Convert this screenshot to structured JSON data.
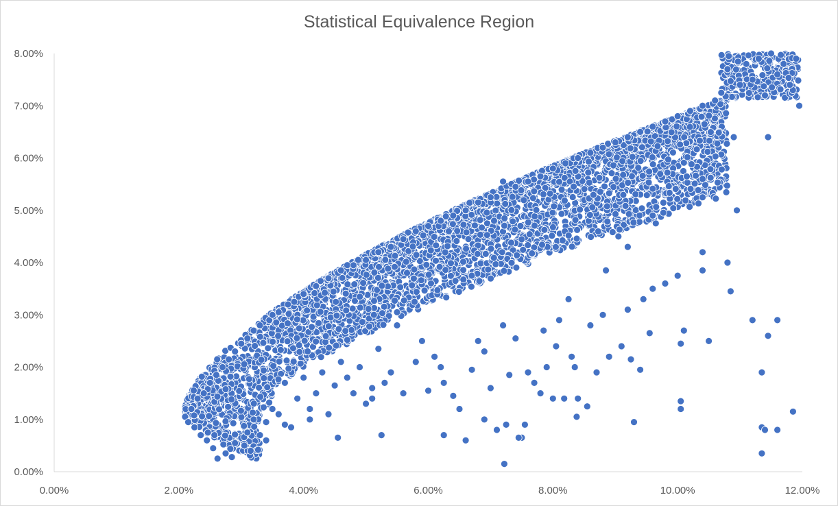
{
  "chart_data": {
    "type": "scatter",
    "title": "Statistical Equivalence Region",
    "xlabel": "",
    "ylabel": "",
    "xlim": [
      0,
      0.12
    ],
    "ylim": [
      0,
      0.08
    ],
    "x_ticks": [
      "0.00%",
      "2.00%",
      "4.00%",
      "6.00%",
      "8.00%",
      "10.00%",
      "12.00%"
    ],
    "y_ticks": [
      "0.00%",
      "1.00%",
      "2.00%",
      "3.00%",
      "4.00%",
      "5.00%",
      "6.00%",
      "7.00%",
      "8.00%"
    ],
    "grid": false,
    "legend": "none",
    "marker_color": "#4472C4",
    "marker_edge": "#ffffff",
    "series": [
      {
        "points": [
          [
            0.021,
            0.0105
          ],
          [
            0.0215,
            0.0095
          ],
          [
            0.022,
            0.012
          ],
          [
            0.0225,
            0.0085
          ],
          [
            0.023,
            0.014
          ],
          [
            0.0235,
            0.007
          ],
          [
            0.024,
            0.015
          ],
          [
            0.0245,
            0.006
          ],
          [
            0.025,
            0.017
          ],
          [
            0.0255,
            0.0045
          ],
          [
            0.026,
            0.0185
          ],
          [
            0.0262,
            0.0025
          ],
          [
            0.027,
            0.02
          ],
          [
            0.0275,
            0.0035
          ],
          [
            0.028,
            0.0215
          ],
          [
            0.0285,
            0.0028
          ],
          [
            0.029,
            0.023
          ],
          [
            0.03,
            0.0245
          ],
          [
            0.0305,
            0.005
          ],
          [
            0.031,
            0.0255
          ],
          [
            0.0315,
            0.004
          ],
          [
            0.032,
            0.027
          ],
          [
            0.033,
            0.028
          ],
          [
            0.034,
            0.006
          ],
          [
            0.0345,
            0.029
          ],
          [
            0.035,
            0.03
          ],
          [
            0.036,
            0.0305
          ],
          [
            0.037,
            0.009
          ],
          [
            0.0375,
            0.032
          ],
          [
            0.0385,
            0.0325
          ],
          [
            0.04,
            0.034
          ],
          [
            0.041,
            0.01
          ],
          [
            0.042,
            0.0355
          ],
          [
            0.044,
            0.037
          ],
          [
            0.0455,
            0.0065
          ],
          [
            0.046,
            0.0385
          ],
          [
            0.048,
            0.0395
          ],
          [
            0.05,
            0.0405
          ],
          [
            0.051,
            0.014
          ],
          [
            0.052,
            0.042
          ],
          [
            0.0525,
            0.007
          ],
          [
            0.054,
            0.043
          ],
          [
            0.056,
            0.0445
          ],
          [
            0.058,
            0.046
          ],
          [
            0.06,
            0.047
          ],
          [
            0.062,
            0.048
          ],
          [
            0.0625,
            0.007
          ],
          [
            0.064,
            0.049
          ],
          [
            0.066,
            0.05
          ],
          [
            0.068,
            0.0515
          ],
          [
            0.07,
            0.0525
          ],
          [
            0.072,
            0.0555
          ],
          [
            0.0722,
            0.0015
          ],
          [
            0.074,
            0.0545
          ],
          [
            0.075,
            0.0065
          ],
          [
            0.076,
            0.0555
          ],
          [
            0.078,
            0.0565
          ],
          [
            0.08,
            0.058
          ],
          [
            0.082,
            0.059
          ],
          [
            0.084,
            0.06
          ],
          [
            0.086,
            0.061
          ],
          [
            0.088,
            0.062
          ],
          [
            0.09,
            0.063
          ],
          [
            0.092,
            0.064
          ],
          [
            0.093,
            0.0095
          ],
          [
            0.094,
            0.065
          ],
          [
            0.096,
            0.066
          ],
          [
            0.098,
            0.067
          ],
          [
            0.1,
            0.068
          ],
          [
            0.102,
            0.069
          ],
          [
            0.104,
            0.07
          ],
          [
            0.106,
            0.071
          ],
          [
            0.107,
            0.0725
          ],
          [
            0.108,
            0.077
          ],
          [
            0.1082,
            0.0795
          ],
          [
            0.11,
            0.074
          ],
          [
            0.111,
            0.078
          ],
          [
            0.112,
            0.075
          ],
          [
            0.113,
            0.079
          ],
          [
            0.114,
            0.072
          ],
          [
            0.115,
            0.08
          ],
          [
            0.116,
            0.076
          ],
          [
            0.117,
            0.078
          ],
          [
            0.118,
            0.074
          ],
          [
            0.119,
            0.079
          ],
          [
            0.1195,
            0.07
          ],
          [
            0.1095,
            0.05
          ],
          [
            0.109,
            0.064
          ],
          [
            0.1085,
            0.0345
          ],
          [
            0.108,
            0.04
          ],
          [
            0.112,
            0.029
          ],
          [
            0.1135,
            0.019
          ],
          [
            0.1135,
            0.0085
          ],
          [
            0.114,
            0.008
          ],
          [
            0.1135,
            0.0035
          ],
          [
            0.116,
            0.008
          ],
          [
            0.116,
            0.029
          ],
          [
            0.1145,
            0.026
          ],
          [
            0.1185,
            0.0115
          ],
          [
            0.1145,
            0.064
          ],
          [
            0.105,
            0.025
          ],
          [
            0.104,
            0.0385
          ],
          [
            0.104,
            0.042
          ],
          [
            0.104,
            0.0525
          ],
          [
            0.104,
            0.056
          ],
          [
            0.1005,
            0.012
          ],
          [
            0.1005,
            0.0135
          ],
          [
            0.1005,
            0.0245
          ],
          [
            0.1,
            0.0375
          ],
          [
            0.101,
            0.027
          ],
          [
            0.098,
            0.036
          ],
          [
            0.096,
            0.035
          ],
          [
            0.0955,
            0.0265
          ],
          [
            0.0945,
            0.033
          ],
          [
            0.0965,
            0.0475
          ],
          [
            0.096,
            0.049
          ],
          [
            0.094,
            0.0195
          ],
          [
            0.0925,
            0.0215
          ],
          [
            0.092,
            0.031
          ],
          [
            0.091,
            0.024
          ],
          [
            0.092,
            0.043
          ],
          [
            0.0905,
            0.045
          ],
          [
            0.089,
            0.022
          ],
          [
            0.088,
            0.03
          ],
          [
            0.0885,
            0.0385
          ],
          [
            0.087,
            0.019
          ],
          [
            0.086,
            0.028
          ],
          [
            0.0855,
            0.0125
          ],
          [
            0.084,
            0.014
          ],
          [
            0.0838,
            0.0105
          ],
          [
            0.0835,
            0.02
          ],
          [
            0.083,
            0.022
          ],
          [
            0.0825,
            0.033
          ],
          [
            0.0818,
            0.014
          ],
          [
            0.081,
            0.029
          ],
          [
            0.0805,
            0.024
          ],
          [
            0.08,
            0.014
          ],
          [
            0.079,
            0.02
          ],
          [
            0.0785,
            0.027
          ],
          [
            0.078,
            0.015
          ],
          [
            0.077,
            0.017
          ],
          [
            0.076,
            0.019
          ],
          [
            0.0755,
            0.009
          ],
          [
            0.0745,
            0.0065
          ],
          [
            0.074,
            0.0255
          ],
          [
            0.073,
            0.0185
          ],
          [
            0.0725,
            0.009
          ],
          [
            0.072,
            0.028
          ],
          [
            0.071,
            0.008
          ],
          [
            0.07,
            0.016
          ],
          [
            0.069,
            0.01
          ],
          [
            0.069,
            0.023
          ],
          [
            0.068,
            0.025
          ],
          [
            0.067,
            0.0195
          ],
          [
            0.066,
            0.006
          ],
          [
            0.065,
            0.012
          ],
          [
            0.064,
            0.0145
          ],
          [
            0.0625,
            0.017
          ],
          [
            0.062,
            0.02
          ],
          [
            0.061,
            0.022
          ],
          [
            0.06,
            0.0155
          ],
          [
            0.059,
            0.025
          ],
          [
            0.058,
            0.021
          ],
          [
            0.056,
            0.015
          ],
          [
            0.055,
            0.028
          ],
          [
            0.054,
            0.019
          ],
          [
            0.053,
            0.017
          ],
          [
            0.052,
            0.0235
          ],
          [
            0.051,
            0.016
          ],
          [
            0.05,
            0.013
          ],
          [
            0.049,
            0.02
          ],
          [
            0.048,
            0.015
          ],
          [
            0.047,
            0.018
          ],
          [
            0.046,
            0.021
          ],
          [
            0.045,
            0.0165
          ],
          [
            0.044,
            0.011
          ],
          [
            0.043,
            0.019
          ],
          [
            0.042,
            0.015
          ],
          [
            0.041,
            0.012
          ],
          [
            0.04,
            0.018
          ],
          [
            0.039,
            0.014
          ],
          [
            0.038,
            0.0085
          ],
          [
            0.037,
            0.017
          ],
          [
            0.036,
            0.011
          ],
          [
            0.035,
            0.012
          ],
          [
            0.034,
            0.0095
          ],
          [
            0.033,
            0.007
          ],
          [
            0.032,
            0.01
          ],
          [
            0.031,
            0.0075
          ]
        ]
      }
    ]
  }
}
